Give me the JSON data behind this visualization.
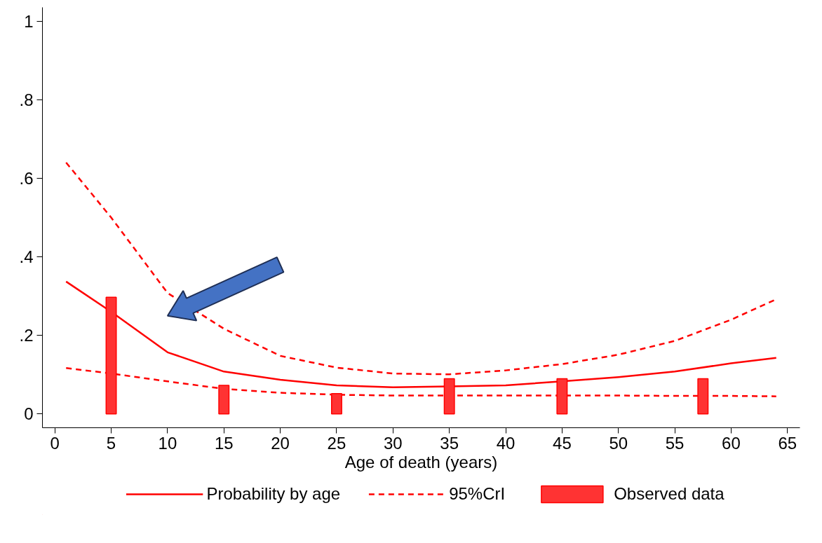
{
  "chart_data": {
    "type": "line",
    "xlabel": "Age of death (years)",
    "xlim": [
      -1.1,
      66.1
    ],
    "ylim": [
      -0.035,
      1.035
    ],
    "xticks": [
      0,
      5,
      10,
      15,
      20,
      25,
      30,
      35,
      40,
      45,
      50,
      55,
      60,
      65
    ],
    "yticks": [
      {
        "value": 0,
        "label": "0"
      },
      {
        "value": 0.2,
        "label": ".2"
      },
      {
        "value": 0.4,
        "label": ".4"
      },
      {
        "value": 0.6,
        "label": ".6"
      },
      {
        "value": 0.8,
        "label": ".8"
      },
      {
        "value": 1,
        "label": "1"
      }
    ],
    "grid": false,
    "legend": "bottom",
    "marker": "none",
    "series": [
      {
        "name": "Probability by age",
        "line_style": "solid",
        "color": "#ff0000",
        "x": [
          1,
          5,
          10,
          15,
          20,
          25,
          30,
          35,
          40,
          45,
          50,
          55,
          60,
          64
        ],
        "values": [
          0.337,
          0.26,
          0.157,
          0.108,
          0.087,
          0.073,
          0.068,
          0.07,
          0.073,
          0.083,
          0.094,
          0.108,
          0.129,
          0.143
        ]
      },
      {
        "name": "95%CrI",
        "line_style": "dashed",
        "color": "#ff0000",
        "x": [
          1,
          5,
          10,
          15,
          20,
          25,
          30,
          35,
          40,
          45,
          50,
          55,
          60,
          64
        ],
        "values": [
          0.64,
          0.5,
          0.308,
          0.217,
          0.148,
          0.118,
          0.103,
          0.101,
          0.111,
          0.127,
          0.151,
          0.186,
          0.24,
          0.292
        ]
      },
      {
        "line_style": "dashed",
        "color": "#ff0000",
        "x": [
          1,
          5,
          10,
          15,
          20,
          25,
          30,
          35,
          40,
          45,
          50,
          55,
          60,
          64
        ],
        "values": [
          0.117,
          0.103,
          0.083,
          0.064,
          0.054,
          0.049,
          0.047,
          0.047,
          0.047,
          0.047,
          0.047,
          0.046,
          0.046,
          0.045
        ]
      },
      {
        "name": "Observed data",
        "type": "bar",
        "color": "#ff3333",
        "x": [
          5,
          15,
          25,
          35,
          45,
          57.5
        ],
        "values": [
          0.297,
          0.073,
          0.052,
          0.09,
          0.09,
          0.09
        ]
      }
    ]
  }
}
